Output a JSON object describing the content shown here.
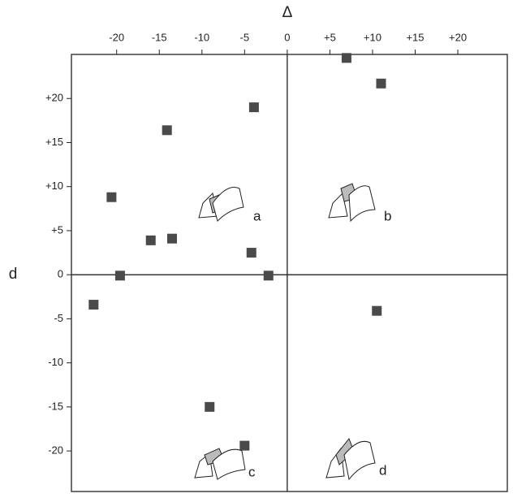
{
  "chart_data": {
    "type": "scatter",
    "x_label": "Δ",
    "y_label": "d",
    "color": "#4a4a4a",
    "x": [
      6.95,
      11.0,
      -3.9,
      -14.1,
      -20.6,
      -16.0,
      -13.5,
      -4.2,
      -19.6,
      -2.2,
      -22.7,
      10.5,
      -9.1,
      -5.0
    ],
    "y": [
      24.6,
      21.7,
      19.0,
      16.4,
      8.8,
      3.9,
      4.1,
      2.5,
      -0.1,
      -0.1,
      -3.4,
      -4.1,
      -15.0,
      -19.4
    ],
    "xlim": [
      -25.3,
      25.8
    ],
    "ylim": [
      -24.6,
      25.0
    ],
    "xticks": [
      -20,
      -15,
      -10,
      -5,
      0,
      {
        "value": 5,
        "label": "+5"
      },
      {
        "value": 10,
        "label": "+10"
      },
      {
        "value": 15,
        "label": "+15"
      },
      {
        "value": 20,
        "label": "+20"
      }
    ],
    "yticks": [
      {
        "value": 20,
        "label": "+20"
      },
      {
        "value": 15,
        "label": "+15"
      },
      {
        "value": 10,
        "label": "+10"
      },
      {
        "value": 5,
        "label": "+5"
      },
      0,
      -5,
      -10,
      -15,
      -20
    ],
    "annotations": [
      "a",
      "b",
      "c",
      "d"
    ]
  }
}
